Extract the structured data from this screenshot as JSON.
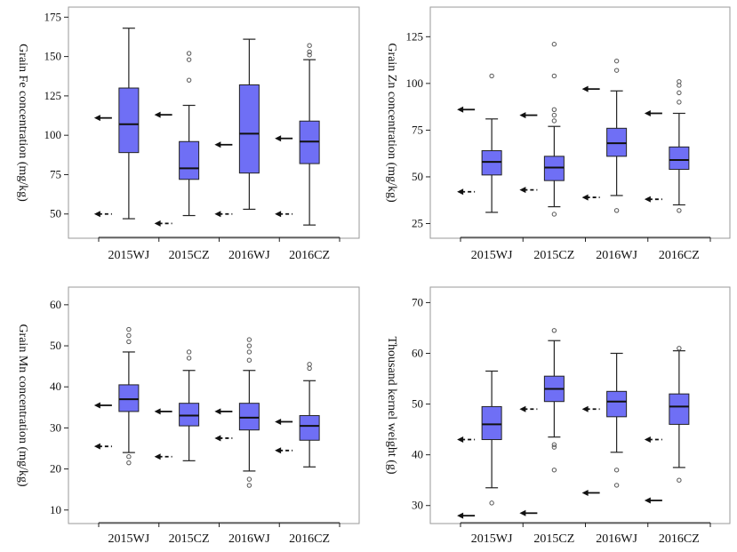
{
  "colors": {
    "box_fill": "#6f6ff5",
    "frame": "#9a9a9a",
    "text": "#111111"
  },
  "chart_data": [
    {
      "type": "box",
      "ylabel": "Grain Fe concentration (mg/kg)",
      "ylim": [
        38,
        178
      ],
      "yticks": [
        50,
        75,
        100,
        125,
        150,
        175
      ],
      "categories": [
        "2015WJ",
        "2015CZ",
        "2016WJ",
        "2016CZ"
      ],
      "boxes": [
        {
          "q1": 89,
          "median": 107,
          "q3": 130,
          "whisker_low": 47,
          "whisker_high": 168,
          "outliers": []
        },
        {
          "q1": 72,
          "median": 79,
          "q3": 96,
          "whisker_low": 49,
          "whisker_high": 119,
          "outliers": [
            135,
            148,
            152
          ]
        },
        {
          "q1": 76,
          "median": 101,
          "q3": 132,
          "whisker_low": 53,
          "whisker_high": 161,
          "outliers": []
        },
        {
          "q1": 82,
          "median": 96,
          "q3": 109,
          "whisker_low": 43,
          "whisker_high": 148,
          "outliers": [
            151,
            153,
            157
          ]
        }
      ],
      "solid_arrows": [
        111,
        113,
        94,
        98
      ],
      "dashed_arrows": [
        50,
        44,
        50,
        50
      ]
    },
    {
      "type": "box",
      "ylabel": "Grain Zn concentration (mg/kg)",
      "ylim": [
        20,
        138
      ],
      "yticks": [
        25,
        50,
        75,
        100,
        125
      ],
      "categories": [
        "2015WJ",
        "2015CZ",
        "2016WJ",
        "2016CZ"
      ],
      "boxes": [
        {
          "q1": 51,
          "median": 58,
          "q3": 64,
          "whisker_low": 31,
          "whisker_high": 81,
          "outliers": [
            104
          ]
        },
        {
          "q1": 48,
          "median": 55,
          "q3": 61,
          "whisker_low": 34,
          "whisker_high": 77,
          "outliers": [
            30,
            80,
            83,
            86,
            104,
            121
          ]
        },
        {
          "q1": 61,
          "median": 68,
          "q3": 76,
          "whisker_low": 40,
          "whisker_high": 96,
          "outliers": [
            32,
            107,
            112
          ]
        },
        {
          "q1": 54,
          "median": 59,
          "q3": 66,
          "whisker_low": 35,
          "whisker_high": 84,
          "outliers": [
            32,
            90,
            95,
            99,
            101
          ]
        }
      ],
      "solid_arrows": [
        86,
        83,
        97,
        84
      ],
      "dashed_arrows": [
        42,
        43,
        39,
        38
      ]
    },
    {
      "type": "box",
      "ylabel": "Grain Mn concentration (mg/kg)",
      "ylim": [
        8,
        63
      ],
      "yticks": [
        10,
        20,
        30,
        40,
        50,
        60
      ],
      "categories": [
        "2015WJ",
        "2015CZ",
        "2016WJ",
        "2016CZ"
      ],
      "boxes": [
        {
          "q1": 34,
          "median": 37,
          "q3": 40.5,
          "whisker_low": 24,
          "whisker_high": 48.5,
          "outliers": [
            21.5,
            23,
            51,
            52.5,
            54
          ]
        },
        {
          "q1": 30.5,
          "median": 33,
          "q3": 36,
          "whisker_low": 22,
          "whisker_high": 44,
          "outliers": [
            47,
            48.5
          ]
        },
        {
          "q1": 29.5,
          "median": 32.5,
          "q3": 36,
          "whisker_low": 19.5,
          "whisker_high": 44,
          "outliers": [
            16,
            17.5,
            46.5,
            48.5,
            50,
            51.5
          ]
        },
        {
          "q1": 27,
          "median": 30.5,
          "q3": 33,
          "whisker_low": 20.5,
          "whisker_high": 41.5,
          "outliers": [
            44.5,
            45.5
          ]
        }
      ],
      "solid_arrows": [
        35.5,
        34,
        34,
        31.5
      ],
      "dashed_arrows": [
        25.5,
        23,
        27.5,
        24.5
      ]
    },
    {
      "type": "box",
      "ylabel": "Thousand kernel weight (g)",
      "ylim": [
        27.5,
        72
      ],
      "yticks": [
        30,
        40,
        50,
        60,
        70
      ],
      "categories": [
        "2015WJ",
        "2015CZ",
        "2016WJ",
        "2016CZ"
      ],
      "boxes": [
        {
          "q1": 43,
          "median": 46,
          "q3": 49.5,
          "whisker_low": 33.5,
          "whisker_high": 56.5,
          "outliers": [
            30.5
          ]
        },
        {
          "q1": 50.5,
          "median": 53,
          "q3": 55.5,
          "whisker_low": 43.5,
          "whisker_high": 62.5,
          "outliers": [
            37,
            41.5,
            42,
            64.5
          ]
        },
        {
          "q1": 47.5,
          "median": 50.5,
          "q3": 52.5,
          "whisker_low": 40.5,
          "whisker_high": 60,
          "outliers": [
            34,
            37
          ]
        },
        {
          "q1": 46,
          "median": 49.5,
          "q3": 52,
          "whisker_low": 37.5,
          "whisker_high": 60.5,
          "outliers": [
            35,
            61
          ]
        }
      ],
      "solid_arrows": [
        28,
        28.5,
        32.5,
        31
      ],
      "dashed_arrows": [
        43,
        49,
        49,
        43
      ]
    }
  ]
}
